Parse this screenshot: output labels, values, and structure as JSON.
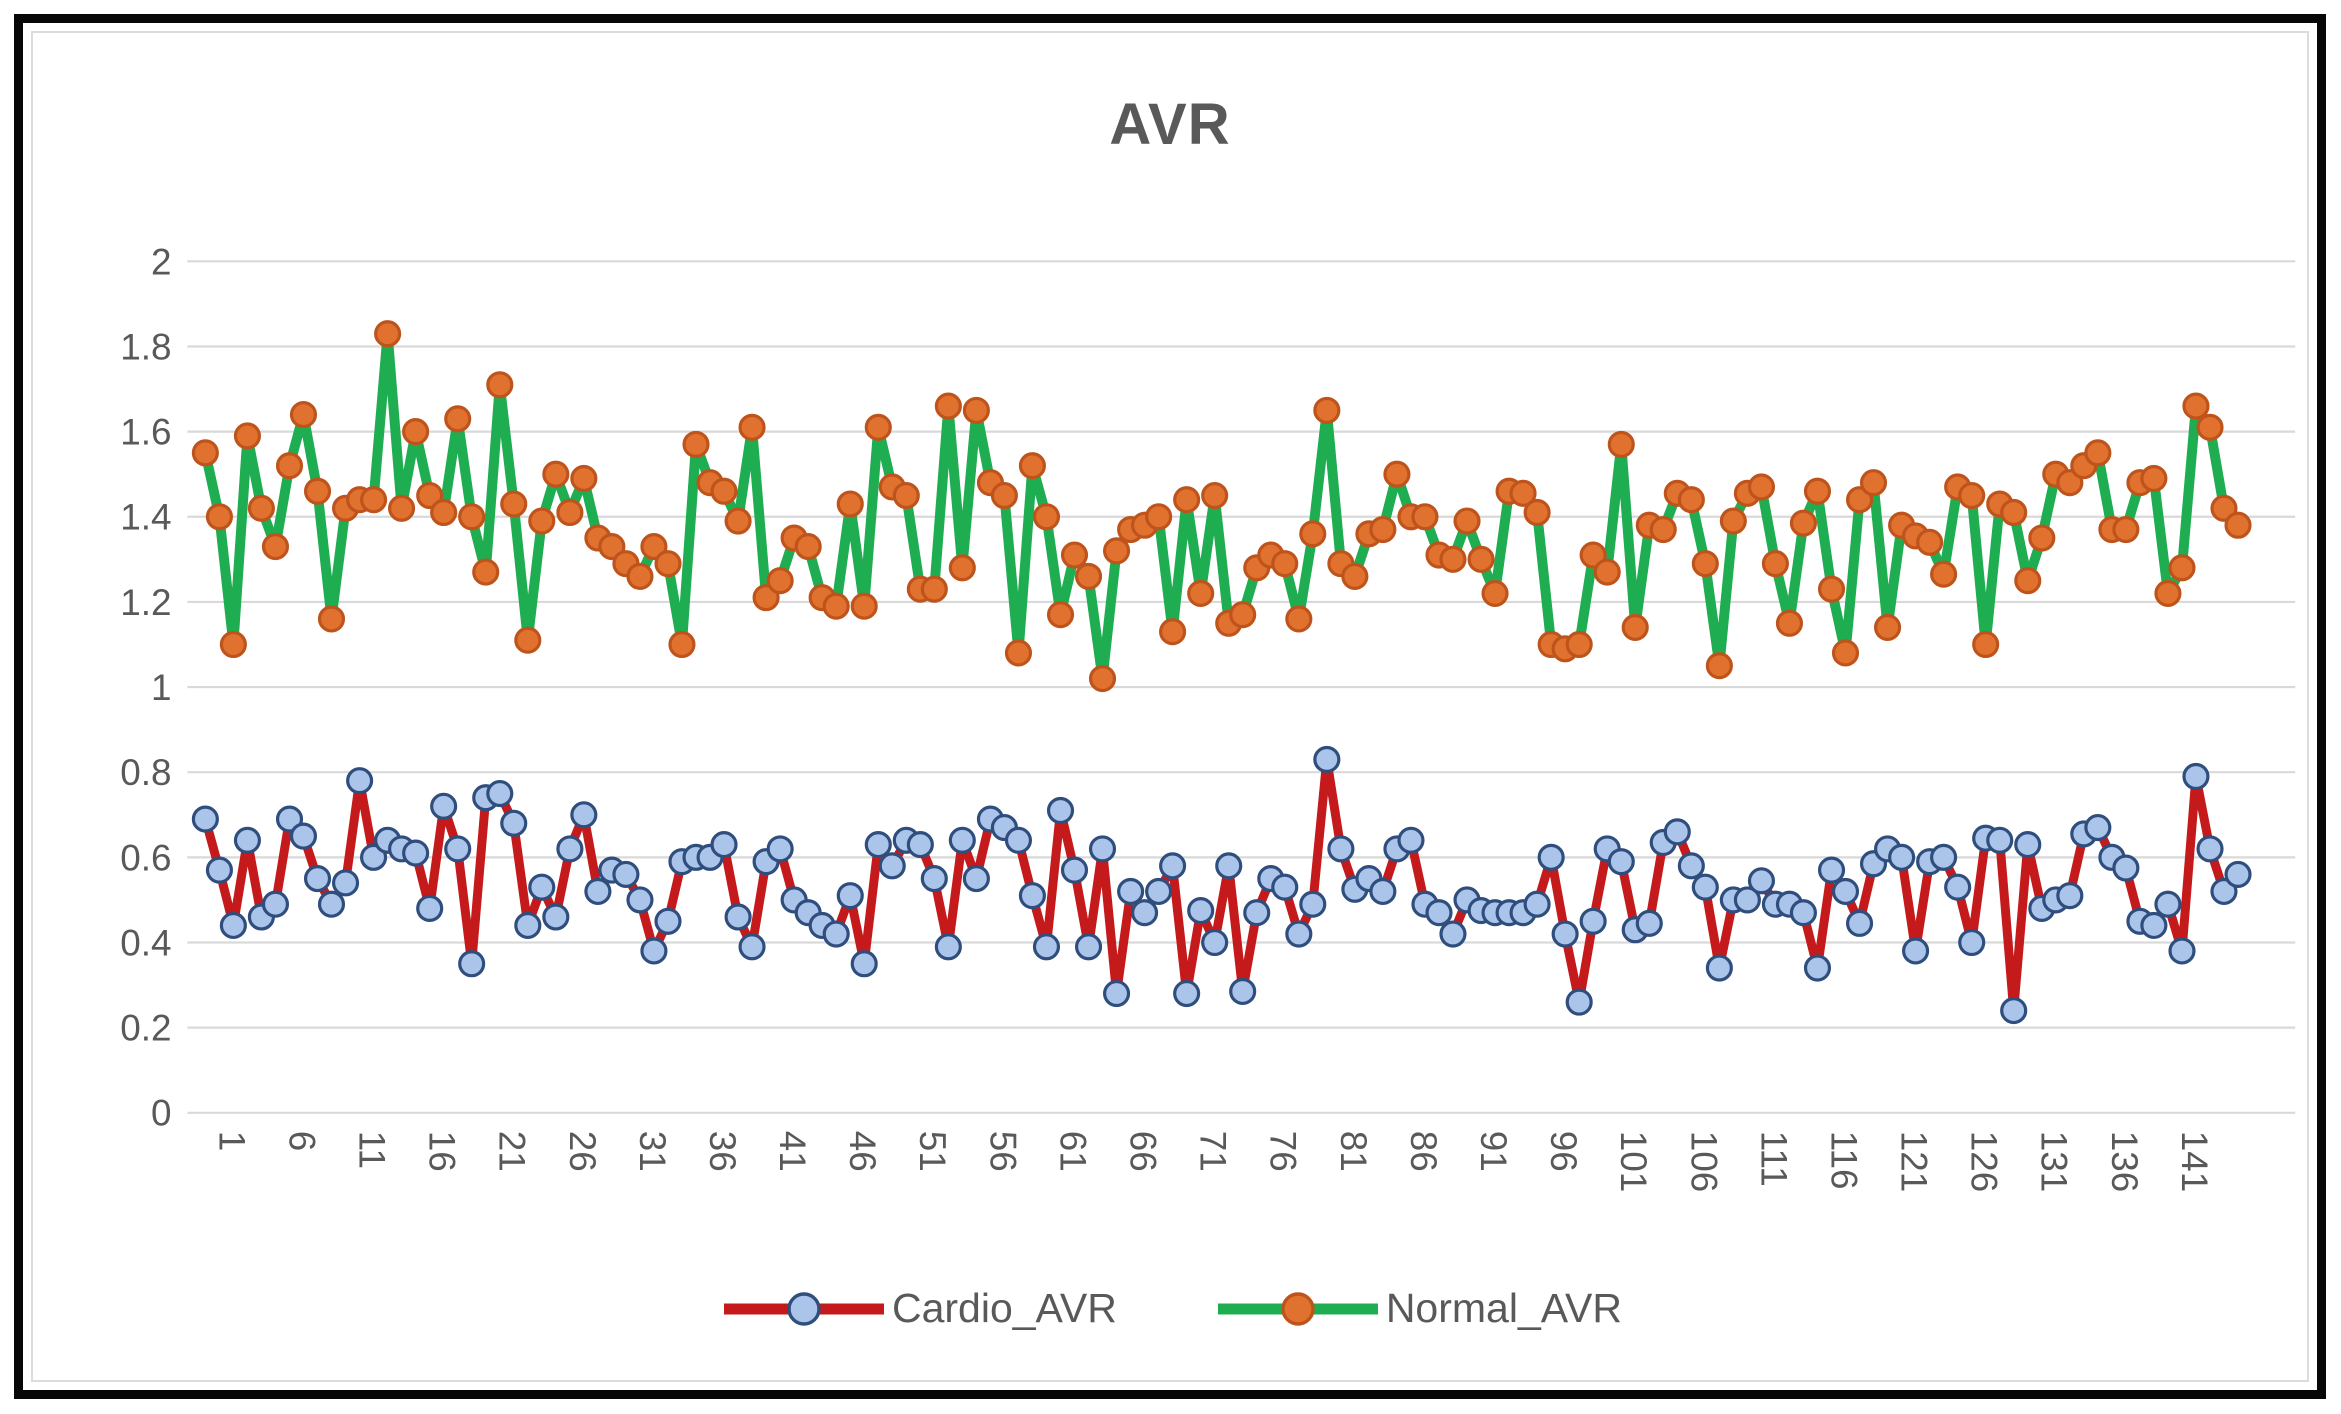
{
  "chart_data": {
    "type": "line",
    "title": "AVR",
    "xlabel": "",
    "ylabel": "",
    "ylim": [
      0,
      2
    ],
    "y_ticks": [
      0,
      0.2,
      0.4,
      0.6,
      0.8,
      1,
      1.2,
      1.4,
      1.6,
      1.8,
      2
    ],
    "y_tick_labels": [
      "0",
      "0.2",
      "0.4",
      "0.6",
      "0.8",
      "1",
      "1.2",
      "1.4",
      "1.6",
      "1.8",
      "2"
    ],
    "n_points": 146,
    "x_start": 1,
    "x_step": 1,
    "x_tick_interval": 5,
    "x_tick_labels": [
      "1",
      "6",
      "11",
      "16",
      "21",
      "26",
      "31",
      "36",
      "41",
      "46",
      "51",
      "56",
      "61",
      "66",
      "71",
      "76",
      "81",
      "86",
      "91",
      "96",
      "101",
      "106",
      "111",
      "116",
      "121",
      "126",
      "131",
      "136",
      "141"
    ],
    "grid": true,
    "legend_position": "bottom",
    "series": [
      {
        "name": "Cardio_AVR",
        "line_color": "#C51A1B",
        "line_width": 9,
        "marker_fill": "#ABC4E9",
        "marker_stroke": "#2F4E7D",
        "values": [
          0.69,
          0.57,
          0.44,
          0.64,
          0.46,
          0.49,
          0.69,
          0.65,
          0.55,
          0.49,
          0.54,
          0.78,
          0.6,
          0.64,
          0.62,
          0.61,
          0.48,
          0.72,
          0.62,
          0.35,
          0.74,
          0.75,
          0.68,
          0.44,
          0.53,
          0.46,
          0.62,
          0.7,
          0.52,
          0.57,
          0.56,
          0.5,
          0.38,
          0.45,
          0.59,
          0.6,
          0.6,
          0.63,
          0.46,
          0.39,
          0.59,
          0.62,
          0.5,
          0.47,
          0.44,
          0.42,
          0.51,
          0.35,
          0.63,
          0.58,
          0.64,
          0.63,
          0.55,
          0.39,
          0.64,
          0.55,
          0.69,
          0.67,
          0.64,
          0.51,
          0.39,
          0.71,
          0.57,
          0.39,
          0.62,
          0.28,
          0.52,
          0.47,
          0.52,
          0.58,
          0.28,
          0.475,
          0.4,
          0.58,
          0.285,
          0.47,
          0.55,
          0.53,
          0.42,
          0.49,
          0.83,
          0.62,
          0.525,
          0.55,
          0.52,
          0.62,
          0.64,
          0.49,
          0.47,
          0.42,
          0.5,
          0.475,
          0.47,
          0.47,
          0.47,
          0.49,
          0.6,
          0.42,
          0.26,
          0.45,
          0.62,
          0.59,
          0.43,
          0.445,
          0.635,
          0.66,
          0.58,
          0.53,
          0.34,
          0.5,
          0.5,
          0.545,
          0.49,
          0.49,
          0.47,
          0.34,
          0.57,
          0.52,
          0.445,
          0.585,
          0.62,
          0.6,
          0.38,
          0.59,
          0.6,
          0.53,
          0.4,
          0.645,
          0.64,
          0.24,
          0.63,
          0.48,
          0.5,
          0.51,
          0.655,
          0.67,
          0.6,
          0.575,
          0.45,
          0.44,
          0.49,
          0.38,
          0.79,
          0.62,
          0.52,
          0.56
        ]
      },
      {
        "name": "Normal_AVR",
        "line_color": "#1FAD52",
        "line_width": 10,
        "marker_fill": "#E1712E",
        "marker_stroke": "#BE541C",
        "values": [
          1.55,
          1.4,
          1.1,
          1.59,
          1.42,
          1.33,
          1.52,
          1.64,
          1.46,
          1.16,
          1.42,
          1.44,
          1.44,
          1.83,
          1.42,
          1.6,
          1.45,
          1.41,
          1.63,
          1.4,
          1.27,
          1.71,
          1.43,
          1.11,
          1.39,
          1.5,
          1.41,
          1.49,
          1.35,
          1.33,
          1.29,
          1.26,
          1.33,
          1.29,
          1.1,
          1.57,
          1.48,
          1.46,
          1.39,
          1.61,
          1.21,
          1.25,
          1.35,
          1.33,
          1.21,
          1.19,
          1.43,
          1.19,
          1.61,
          1.47,
          1.45,
          1.23,
          1.23,
          1.66,
          1.28,
          1.65,
          1.48,
          1.45,
          1.08,
          1.52,
          1.4,
          1.17,
          1.31,
          1.26,
          1.02,
          1.32,
          1.37,
          1.38,
          1.4,
          1.13,
          1.44,
          1.22,
          1.45,
          1.15,
          1.17,
          1.28,
          1.31,
          1.29,
          1.16,
          1.36,
          1.65,
          1.29,
          1.26,
          1.36,
          1.37,
          1.5,
          1.4,
          1.4,
          1.31,
          1.3,
          1.39,
          1.3,
          1.22,
          1.46,
          1.455,
          1.41,
          1.1,
          1.09,
          1.1,
          1.31,
          1.27,
          1.57,
          1.14,
          1.38,
          1.37,
          1.455,
          1.44,
          1.29,
          1.05,
          1.39,
          1.455,
          1.47,
          1.29,
          1.15,
          1.385,
          1.46,
          1.23,
          1.08,
          1.44,
          1.48,
          1.14,
          1.38,
          1.355,
          1.34,
          1.265,
          1.47,
          1.45,
          1.1,
          1.43,
          1.41,
          1.25,
          1.35,
          1.5,
          1.48,
          1.52,
          1.55,
          1.37,
          1.37,
          1.48,
          1.49,
          1.22,
          1.28,
          1.66,
          1.61,
          1.42,
          1.38
        ]
      }
    ],
    "colors": {
      "grid": "#D9D9D9",
      "axis_text": "#595959",
      "title_text": "#595959",
      "background": "#FFFFFF",
      "outer_border": "#070707",
      "chart_border": "#DCDCDC"
    }
  }
}
